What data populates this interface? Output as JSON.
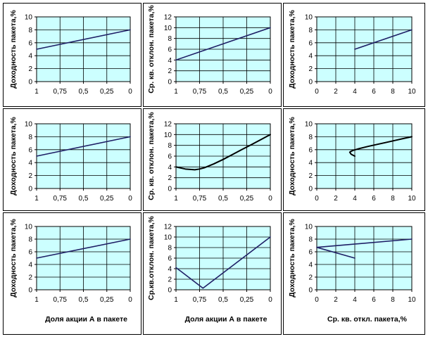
{
  "colors": {
    "plot_background": "#ccffff",
    "series_straight": "#1f1f66",
    "series_curve": "#000000",
    "grid": "#000000",
    "cell_border": "#000000"
  },
  "chart_data": [
    {
      "type": "line",
      "ylabel": "Доходность пакета,%",
      "xlabel": "",
      "xlim": [
        1,
        0
      ],
      "ylim": [
        0,
        10
      ],
      "xticks": [
        "1",
        "0,75",
        "0,5",
        "0,25",
        "0"
      ],
      "yticks": [
        "0",
        "2",
        "4",
        "6",
        "8",
        "10"
      ],
      "grid": true,
      "series": [
        {
          "x": [
            1,
            0
          ],
          "y": [
            5,
            8
          ]
        }
      ]
    },
    {
      "type": "line",
      "ylabel": "Ср. кв. отклон. пакета,%",
      "xlabel": "",
      "xlim": [
        1,
        0
      ],
      "ylim": [
        0,
        12
      ],
      "xticks": [
        "1",
        "0,75",
        "0,5",
        "0,25",
        "0"
      ],
      "yticks": [
        "0",
        "2",
        "4",
        "6",
        "8",
        "10",
        "12"
      ],
      "grid": true,
      "series": [
        {
          "x": [
            1,
            0
          ],
          "y": [
            4,
            10
          ]
        }
      ]
    },
    {
      "type": "line",
      "ylabel": "Доходность пакета,%",
      "xlabel": "",
      "xlim": [
        0,
        10
      ],
      "ylim": [
        0,
        10
      ],
      "xticks": [
        "0",
        "2",
        "4",
        "6",
        "8",
        "10"
      ],
      "yticks": [
        "0",
        "2",
        "4",
        "6",
        "8",
        "10"
      ],
      "grid": true,
      "series": [
        {
          "x": [
            4,
            10
          ],
          "y": [
            5,
            8
          ]
        }
      ]
    },
    {
      "type": "line",
      "ylabel": "Доходность пакета,%",
      "xlabel": "",
      "xlim": [
        1,
        0
      ],
      "ylim": [
        0,
        10
      ],
      "xticks": [
        "1",
        "0,75",
        "0,5",
        "0,25",
        "0"
      ],
      "yticks": [
        "0",
        "2",
        "4",
        "6",
        "8",
        "10"
      ],
      "grid": true,
      "series": [
        {
          "x": [
            1,
            0
          ],
          "y": [
            5,
            8
          ]
        }
      ]
    },
    {
      "type": "line",
      "ylabel": "Ср. кв. отклон. пакета,%",
      "xlabel": "",
      "xlim": [
        1,
        0
      ],
      "ylim": [
        0,
        12
      ],
      "xticks": [
        "1",
        "0,75",
        "0,5",
        "0,25",
        "0"
      ],
      "yticks": [
        "0",
        "2",
        "4",
        "6",
        "8",
        "10",
        "12"
      ],
      "grid": true,
      "series": [
        {
          "x": [
            1,
            0.9,
            0.8,
            0.75,
            0.7,
            0.6,
            0.5,
            0.4,
            0.3,
            0.2,
            0.1,
            0
          ],
          "y": [
            4.0,
            3.61,
            3.47,
            3.61,
            3.84,
            4.56,
            5.39,
            6.31,
            7.24,
            8.14,
            9.06,
            10.0
          ]
        }
      ]
    },
    {
      "type": "line",
      "ylabel": "Доходность пакета,%",
      "xlabel": "",
      "xlim": [
        0,
        10
      ],
      "ylim": [
        0,
        10
      ],
      "xticks": [
        "0",
        "2",
        "4",
        "6",
        "8",
        "10"
      ],
      "yticks": [
        "0",
        "2",
        "4",
        "6",
        "8",
        "10"
      ],
      "grid": true,
      "series": [
        {
          "x": [
            4.0,
            3.61,
            3.47,
            3.61,
            3.84,
            4.56,
            5.39,
            6.31,
            7.24,
            8.14,
            9.06,
            10.0
          ],
          "y": [
            5.0,
            5.3,
            5.6,
            5.75,
            5.9,
            6.2,
            6.5,
            6.8,
            7.1,
            7.4,
            7.7,
            8.0
          ]
        }
      ]
    },
    {
      "type": "line",
      "ylabel": "Доходность пакета,%",
      "xlabel": "Доля акции А в пакете",
      "xlim": [
        1,
        0
      ],
      "ylim": [
        0,
        10
      ],
      "xticks": [
        "1",
        "0,75",
        "0,5",
        "0,25",
        "0"
      ],
      "yticks": [
        "0",
        "2",
        "4",
        "6",
        "8",
        "10"
      ],
      "grid": true,
      "series": [
        {
          "x": [
            1,
            0
          ],
          "y": [
            5,
            8
          ]
        }
      ]
    },
    {
      "type": "line",
      "ylabel": "Ср.кв.отклон. пакета,%",
      "xlabel": "Доля акции А в пакете",
      "xlim": [
        1,
        0
      ],
      "ylim": [
        0,
        12
      ],
      "xticks": [
        "1",
        "0,75",
        "0,5",
        "0,25",
        "0"
      ],
      "yticks": [
        "0",
        "2",
        "4",
        "6",
        "8",
        "10",
        "12"
      ],
      "grid": true,
      "series": [
        {
          "x": [
            1,
            0.714,
            0
          ],
          "y": [
            4.2,
            0.3,
            10
          ]
        }
      ]
    },
    {
      "type": "line",
      "ylabel": "Доходность пакета,%",
      "xlabel": "Ср. кв. откл. пакета,%",
      "xlim": [
        0,
        10
      ],
      "ylim": [
        0,
        10
      ],
      "xticks": [
        "0",
        "2",
        "4",
        "6",
        "8",
        "10"
      ],
      "yticks": [
        "0",
        "2",
        "4",
        "6",
        "8",
        "10"
      ],
      "grid": true,
      "series": [
        {
          "x": [
            4,
            0,
            10
          ],
          "y": [
            5,
            6.7,
            8
          ]
        }
      ]
    }
  ]
}
